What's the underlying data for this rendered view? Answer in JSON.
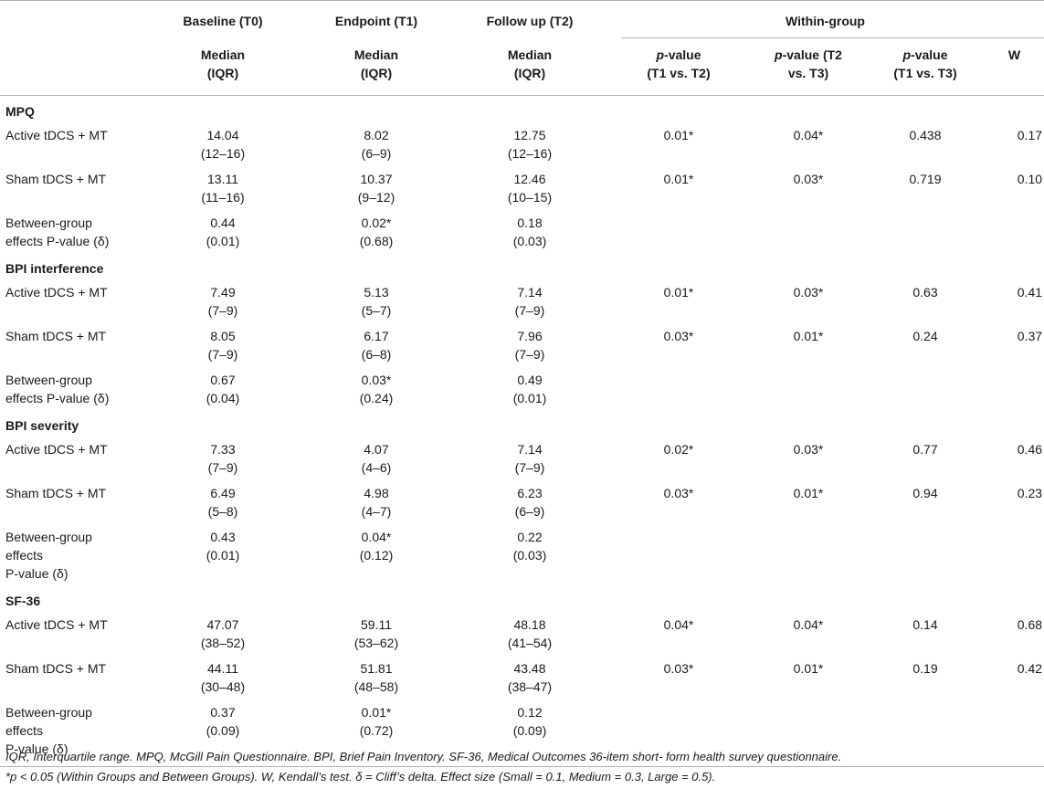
{
  "header": {
    "baseline": "Baseline (T0)",
    "endpoint": "Endpoint (T1)",
    "followup": "Follow up (T2)",
    "within_group": "Within-group",
    "median_line1": "Median",
    "median_line2": "(IQR)",
    "pval": "p",
    "pval_t1t2_rest1": "-value",
    "pval_t1t2_line2": "(T1 vs. T2)",
    "pval_t2t3_rest1": "-value (T2",
    "pval_t2t3_line2": "vs. T3)",
    "pval_t1t3_rest1": "-value",
    "pval_t1t3_line2": "(T1 vs. T3)",
    "w": "W"
  },
  "sections": [
    {
      "title": "MPQ",
      "rows": [
        {
          "label": [
            "Active tDCS + MT"
          ],
          "t0": [
            "14.04",
            "(12–16)"
          ],
          "t1": [
            "8.02",
            "(6–9)"
          ],
          "t2": [
            "12.75",
            "(12–16)"
          ],
          "p12": "0.01*",
          "p23": "0.04*",
          "p13": "0.438",
          "w": "0.17"
        },
        {
          "label": [
            "Sham tDCS + MT"
          ],
          "t0": [
            "13.11",
            "(11–16)"
          ],
          "t1": [
            "10.37",
            "(9–12)"
          ],
          "t2": [
            "12.46",
            "(10–15)"
          ],
          "p12": "0.01*",
          "p23": "0.03*",
          "p13": "0.719",
          "w": "0.10"
        },
        {
          "label": [
            "Between-group",
            "effects P-value (δ)"
          ],
          "t0": [
            "0.44",
            "(0.01)"
          ],
          "t1": [
            "0.02*",
            "(0.68)"
          ],
          "t2": [
            "0.18",
            "(0.03)"
          ],
          "p12": "",
          "p23": "",
          "p13": "",
          "w": ""
        }
      ]
    },
    {
      "title": "BPI interference",
      "rows": [
        {
          "label": [
            "Active tDCS + MT"
          ],
          "t0": [
            "7.49",
            "(7–9)"
          ],
          "t1": [
            "5.13",
            "(5–7)"
          ],
          "t2": [
            "7.14",
            "(7–9)"
          ],
          "p12": "0.01*",
          "p23": "0.03*",
          "p13": "0.63",
          "w": "0.41"
        },
        {
          "label": [
            "Sham tDCS + MT"
          ],
          "t0": [
            "8.05",
            "(7–9)"
          ],
          "t1": [
            "6.17",
            "(6–8)"
          ],
          "t2": [
            "7.96",
            "(7–9)"
          ],
          "p12": "0.03*",
          "p23": "0.01*",
          "p13": "0.24",
          "w": "0.37"
        },
        {
          "label": [
            "Between-group",
            "effects P-value (δ)"
          ],
          "t0": [
            "0.67",
            "(0.04)"
          ],
          "t1": [
            "0.03*",
            "(0.24)"
          ],
          "t2": [
            "0.49",
            "(0.01)"
          ],
          "p12": "",
          "p23": "",
          "p13": "",
          "w": ""
        }
      ]
    },
    {
      "title": "BPI severity",
      "rows": [
        {
          "label": [
            "Active tDCS + MT"
          ],
          "t0": [
            "7.33",
            "(7–9)"
          ],
          "t1": [
            "4.07",
            "(4–6)"
          ],
          "t2": [
            "7.14",
            "(7–9)"
          ],
          "p12": "0.02*",
          "p23": "0.03*",
          "p13": "0.77",
          "w": "0.46"
        },
        {
          "label": [
            "Sham tDCS + MT"
          ],
          "t0": [
            "6.49",
            "(5–8)"
          ],
          "t1": [
            "4.98",
            "(4–7)"
          ],
          "t2": [
            "6.23",
            "(6–9)"
          ],
          "p12": "0.03*",
          "p23": "0.01*",
          "p13": "0.94",
          "w": "0.23"
        },
        {
          "label": [
            "Between-group",
            "effects",
            "P-value (δ)"
          ],
          "t0": [
            "0.43",
            "(0.01)"
          ],
          "t1": [
            "0.04*",
            "(0.12)"
          ],
          "t2": [
            "0.22",
            "(0.03)"
          ],
          "p12": "",
          "p23": "",
          "p13": "",
          "w": ""
        }
      ]
    },
    {
      "title": "SF-36",
      "rows": [
        {
          "label": [
            "Active tDCS + MT"
          ],
          "t0": [
            "47.07",
            "(38–52)"
          ],
          "t1": [
            "59.11",
            "(53–62)"
          ],
          "t2": [
            "48.18",
            "(41–54)"
          ],
          "p12": "0.04*",
          "p23": "0.04*",
          "p13": "0.14",
          "w": "0.68"
        },
        {
          "label": [
            "Sham tDCS + MT"
          ],
          "t0": [
            "44.11",
            "(30–48)"
          ],
          "t1": [
            "51.81",
            "(48–58)"
          ],
          "t2": [
            "43.48",
            "(38–47)"
          ],
          "p12": "0.03*",
          "p23": "0.01*",
          "p13": "0.19",
          "w": "0.42"
        },
        {
          "label": [
            "Between-group",
            "effects",
            "P-value (δ)"
          ],
          "t0": [
            "0.37",
            "(0.09)"
          ],
          "t1": [
            "0.01*",
            "(0.72)"
          ],
          "t2": [
            "0.12",
            "(0.09)"
          ],
          "p12": "",
          "p23": "",
          "p13": "",
          "w": ""
        }
      ]
    }
  ],
  "footnotes": [
    "IQR, Interquartile range. MPQ, McGill Pain Questionnaire. BPI, Brief Pain Inventory. SF-36, Medical Outcomes 36-item short- form health survey questionnaire.",
    "*p < 0.05 (Within Groups and Between Groups). W, Kendall’s test. δ = Cliff’s delta. Effect size (Small = 0.1, Medium = 0.3, Large = 0.5)."
  ]
}
